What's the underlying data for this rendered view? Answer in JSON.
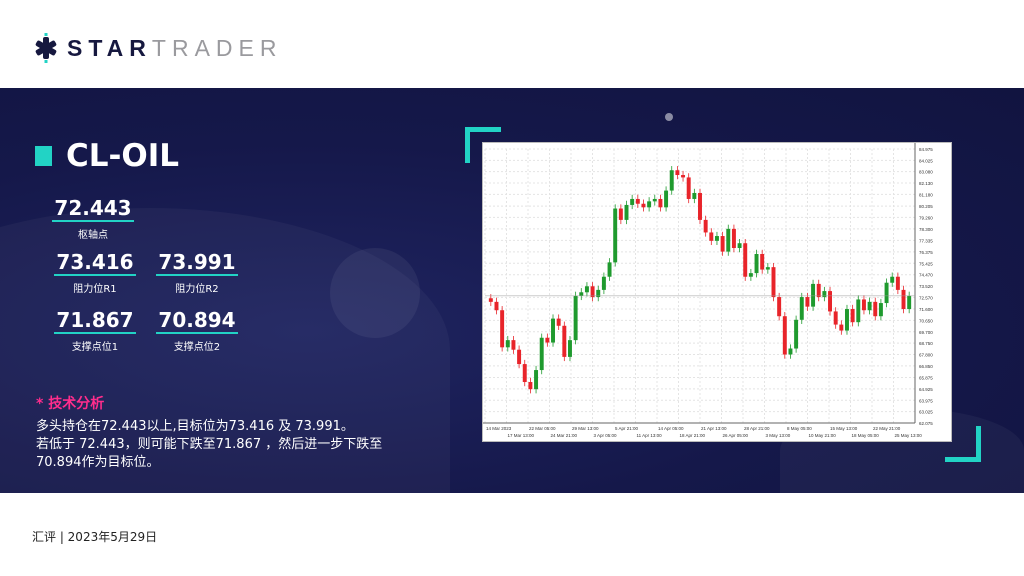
{
  "brand": {
    "part1": "STAR",
    "part2": "TRADER",
    "accent": "#22d3c5"
  },
  "title": "CL-OIL",
  "levels": {
    "pivot": {
      "value": "72.443",
      "label": "枢轴点"
    },
    "r1": {
      "value": "73.416",
      "label": "阻力位R1"
    },
    "r2": {
      "value": "73.991",
      "label": "阻力位R2"
    },
    "s1": {
      "value": "71.867",
      "label": "支撑点位1"
    },
    "s2": {
      "value": "70.894",
      "label": "支撑点位2"
    }
  },
  "analysis": {
    "heading": "* 技术分析",
    "line1": "多头持仓在72.443以上,目标位为73.416 及 73.991。",
    "line2": "若低于 72.443，则可能下跌至71.867 ，然后进一步下跌至",
    "line3": "70.894作为目标位。"
  },
  "footer": "汇评 | 2023年5月29日",
  "chart_data": {
    "type": "candlestick",
    "up_color": "#1f9a2e",
    "down_color": "#e8242a",
    "grid": true,
    "ylim": [
      62.075,
      84.975
    ],
    "yticks": [
      84.975,
      84.025,
      83.08,
      82.13,
      81.18,
      80.205,
      79.26,
      78.3,
      77.335,
      76.375,
      75.425,
      74.47,
      73.52,
      72.57,
      71.6,
      70.65,
      69.7,
      68.75,
      67.8,
      66.85,
      65.875,
      64.925,
      63.975,
      63.025,
      62.075
    ],
    "xticks": [
      "14 Mar 2023",
      "17 Mar 13:00",
      "22 Mar 05:00",
      "24 Mar 21:00",
      "29 Mar 13:00",
      "3 Apr 05:00",
      "5 Apr 21:00",
      "11 Apr 13:00",
      "14 Apr 05:00",
      "18 Apr 21:00",
      "21 Apr 13:00",
      "26 Apr 05:00",
      "28 Apr 21:00",
      "3 May 13:00",
      "8 May 05:00",
      "10 May 21:00",
      "15 May 13:00",
      "18 May 05:00",
      "22 May 21:00",
      "25 May 13:00"
    ],
    "close": [
      72.2,
      71.5,
      68.4,
      69.0,
      68.2,
      67.0,
      65.5,
      64.9,
      66.5,
      69.2,
      68.8,
      70.8,
      70.2,
      67.6,
      69.0,
      72.7,
      73.0,
      73.5,
      72.6,
      73.2,
      74.3,
      75.5,
      80.0,
      79.05,
      80.3,
      80.8,
      80.4,
      80.1,
      80.6,
      80.8,
      80.1,
      81.5,
      83.2,
      82.8,
      82.6,
      80.8,
      81.3,
      79.05,
      78.0,
      77.3,
      77.7,
      76.4,
      78.3,
      76.7,
      77.1,
      74.3,
      74.6,
      76.2,
      74.9,
      75.1,
      72.6,
      71.0,
      67.8,
      68.3,
      70.7,
      72.6,
      71.8,
      73.7,
      72.6,
      73.1,
      71.4,
      70.3,
      69.8,
      71.6,
      70.5,
      72.4,
      71.5,
      72.2,
      71.0,
      72.1,
      73.8,
      74.3,
      73.2,
      71.6,
      72.7
    ]
  }
}
